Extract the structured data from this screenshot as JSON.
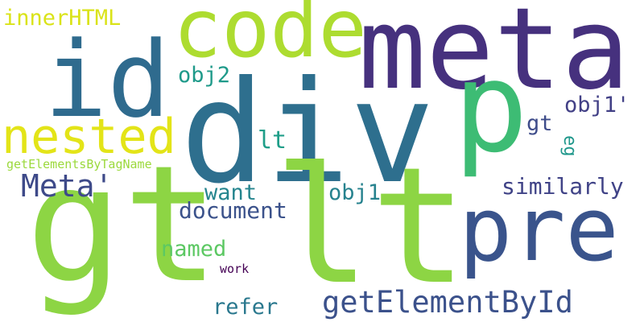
{
  "words": [
    {
      "key": "div",
      "text": "div",
      "color": "#2e6f8e"
    },
    {
      "key": "meta",
      "text": "meta",
      "color": "#46317e"
    },
    {
      "key": "gt_big",
      "text": "gt",
      "color": "#8dd544"
    },
    {
      "key": "lt_big",
      "text": "lt",
      "color": "#8dd544"
    },
    {
      "key": "code",
      "text": "code",
      "color": "#addc30"
    },
    {
      "key": "id",
      "text": "id",
      "color": "#2f6b8e"
    },
    {
      "key": "p",
      "text": "p",
      "color": "#3dbc74"
    },
    {
      "key": "pre",
      "text": "pre",
      "color": "#3a548c"
    },
    {
      "key": "nested",
      "text": "nested",
      "color": "#e3e418"
    },
    {
      "key": "meta_q",
      "text": "Meta'",
      "color": "#3e4a89"
    },
    {
      "key": "getElementById",
      "text": "getElementById",
      "color": "#3b518b"
    },
    {
      "key": "document",
      "text": "document",
      "color": "#3b528b"
    },
    {
      "key": "innerHTML",
      "text": "innerHTML",
      "color": "#dae319"
    },
    {
      "key": "similarly",
      "text": "similarly",
      "color": "#404387"
    },
    {
      "key": "obj1q",
      "text": "obj1'",
      "color": "#424086"
    },
    {
      "key": "obj1",
      "text": "obj1",
      "color": "#26828e"
    },
    {
      "key": "obj2",
      "text": "obj2",
      "color": "#1f9a8a"
    },
    {
      "key": "want",
      "text": "want",
      "color": "#25858e"
    },
    {
      "key": "lt_small",
      "text": "lt",
      "color": "#1f9e89"
    },
    {
      "key": "gt_small",
      "text": "gt",
      "color": "#3e4c8a"
    },
    {
      "key": "eg",
      "text": "eg",
      "color": "#1f978b"
    },
    {
      "key": "named",
      "text": "named",
      "color": "#5cc863"
    },
    {
      "key": "refer",
      "text": "refer",
      "color": "#2a788e"
    },
    {
      "key": "getElementsByTagName",
      "text": "getElementsByTagName",
      "color": "#9bd93c"
    },
    {
      "key": "work",
      "text": "work",
      "color": "#440154"
    }
  ]
}
